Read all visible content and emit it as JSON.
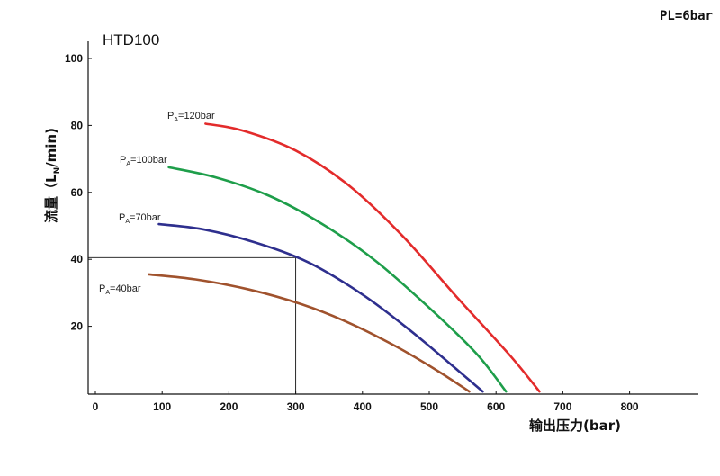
{
  "chart_data": {
    "type": "line",
    "title": "HTD100",
    "subtitle": "PL=6bar",
    "xlabel": "输出压力(bar)",
    "ylabel_main": "流量（L",
    "ylabel_sub": "N",
    "ylabel_tail": "/min)",
    "xlim": [
      0,
      900
    ],
    "ylim": [
      0,
      100
    ],
    "x_ticks": [
      0,
      100,
      200,
      300,
      400,
      500,
      600,
      700,
      800
    ],
    "y_ticks": [
      20,
      40,
      60,
      80,
      100
    ],
    "grid": false,
    "series": [
      {
        "name": "120bar",
        "label_prefix": "P",
        "label_sub": "A",
        "label_suffix": "=120bar",
        "color": "#e32b2b",
        "points": [
          [
            165,
            80.5
          ],
          [
            220,
            78.5
          ],
          [
            300,
            72.5
          ],
          [
            380,
            62
          ],
          [
            460,
            47
          ],
          [
            540,
            29
          ],
          [
            620,
            11.5
          ],
          [
            665,
            0.5
          ]
        ]
      },
      {
        "name": "100bar",
        "label_prefix": "P",
        "label_sub": "A",
        "label_suffix": "=100bar",
        "color": "#1e9e4a",
        "points": [
          [
            110,
            67.5
          ],
          [
            180,
            64.5
          ],
          [
            260,
            59
          ],
          [
            340,
            50.5
          ],
          [
            420,
            39.5
          ],
          [
            500,
            25.5
          ],
          [
            570,
            12
          ],
          [
            615,
            0.5
          ]
        ]
      },
      {
        "name": "70bar",
        "label_prefix": "P",
        "label_sub": "A",
        "label_suffix": "=70bar",
        "color": "#2e2f8e",
        "points": [
          [
            95,
            50.5
          ],
          [
            160,
            49
          ],
          [
            240,
            45
          ],
          [
            320,
            39
          ],
          [
            400,
            29.5
          ],
          [
            470,
            19
          ],
          [
            530,
            9
          ],
          [
            580,
            0.5
          ]
        ]
      },
      {
        "name": "40bar",
        "label_prefix": "P",
        "label_sub": "A",
        "label_suffix": "=40bar",
        "color": "#a0522d",
        "points": [
          [
            80,
            35.5
          ],
          [
            150,
            34
          ],
          [
            230,
            31
          ],
          [
            310,
            26.5
          ],
          [
            380,
            21
          ],
          [
            450,
            14
          ],
          [
            510,
            7
          ],
          [
            560,
            0.5
          ]
        ]
      }
    ],
    "reference_point": {
      "x": 300,
      "y": 40.5
    }
  }
}
